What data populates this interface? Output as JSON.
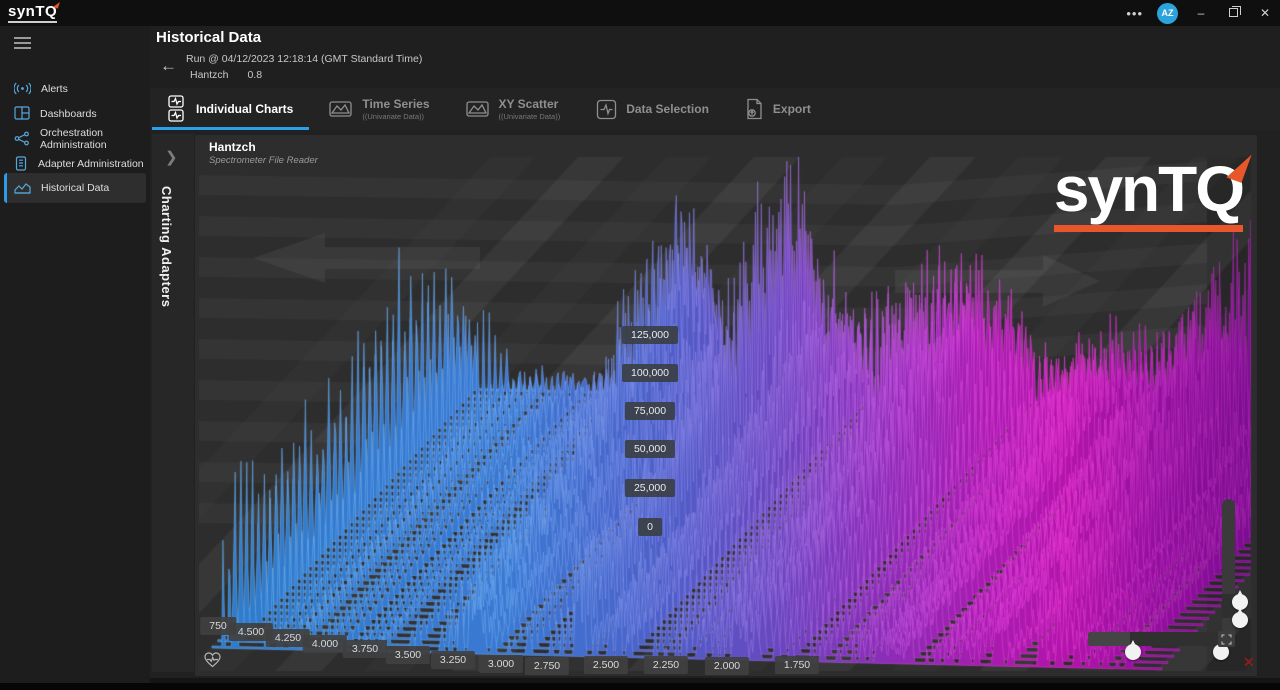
{
  "titlebar": {
    "logo": "synTQ",
    "ellipsis": "•••",
    "avatar": "AZ",
    "minimize": "–",
    "close": "✕"
  },
  "sidebar": {
    "items": [
      {
        "label": "Alerts",
        "icon": "alerts-icon",
        "active": false
      },
      {
        "label": "Dashboards",
        "icon": "dashboards-icon",
        "active": false
      },
      {
        "label": "Orchestration Administration",
        "icon": "orchestration-icon",
        "active": false
      },
      {
        "label": "Adapter Administration",
        "icon": "adapter-icon",
        "active": false
      },
      {
        "label": "Historical Data",
        "icon": "historical-data-icon",
        "active": true
      }
    ]
  },
  "header": {
    "title": "Historical Data",
    "run_line": "Run @ 04/12/2023 12:18:14 (GMT Standard Time)",
    "run_name": "Hantzch",
    "run_version": "0.8"
  },
  "tabs": [
    {
      "label": "Individual Charts",
      "sub": "",
      "active": true
    },
    {
      "label": "Time Series",
      "sub": "((Univariate Data))",
      "active": false
    },
    {
      "label": "XY Scatter",
      "sub": "((Univariate Data))",
      "active": false
    },
    {
      "label": "Data Selection",
      "sub": "",
      "active": false
    },
    {
      "label": "Export",
      "sub": "",
      "active": false
    }
  ],
  "panel": {
    "collapsed_label": "Charting Adapters",
    "watermark": "synTQ"
  },
  "chart_data": {
    "type": "surface3d-waterfall",
    "title": "Hantzch",
    "subtitle": "Spectrometer File Reader",
    "x_axis": {
      "labels": [
        "750",
        "4.500",
        "4.250",
        "4.000",
        "3.750",
        "3.500",
        "3.250",
        "3.000",
        "2.750",
        "2.500",
        "2.250",
        "2.000",
        "1.750"
      ]
    },
    "y_axis": {
      "labels": [
        "125,000",
        "100,000",
        "75,000",
        "50,000",
        "25,000",
        "0"
      ],
      "min": 0,
      "max": 125000
    },
    "rows": 42,
    "seed": 7,
    "peak_count": 120,
    "envelope": [
      [
        0,
        0.32
      ],
      [
        0.02,
        0.62
      ],
      [
        0.05,
        0.34
      ],
      [
        0.1,
        0.22
      ],
      [
        0.15,
        0.24
      ],
      [
        0.2,
        0.3
      ],
      [
        0.24,
        0.45
      ],
      [
        0.27,
        0.95
      ],
      [
        0.3,
        0.55
      ],
      [
        0.33,
        0.42
      ],
      [
        0.36,
        0.7
      ],
      [
        0.385,
        1.0
      ],
      [
        0.41,
        0.6
      ],
      [
        0.45,
        0.78
      ],
      [
        0.5,
        0.68
      ],
      [
        0.55,
        0.75
      ],
      [
        0.6,
        0.62
      ],
      [
        0.65,
        0.55
      ],
      [
        0.7,
        0.5
      ],
      [
        0.75,
        0.46
      ],
      [
        0.8,
        0.52
      ],
      [
        0.85,
        0.68
      ],
      [
        0.875,
        0.92
      ],
      [
        0.9,
        0.55
      ],
      [
        0.94,
        0.38
      ],
      [
        1,
        0.3
      ]
    ],
    "front_boost": [
      [
        0,
        2.4
      ],
      [
        0.04,
        2.2
      ],
      [
        0.08,
        0.8
      ],
      [
        0.15,
        0.1
      ],
      [
        0.3,
        0
      ],
      [
        1,
        0
      ]
    ],
    "row_profile": [
      [
        0,
        0.5
      ],
      [
        0.12,
        0.95
      ],
      [
        0.3,
        0.85
      ],
      [
        0.5,
        0.55
      ],
      [
        0.7,
        0.42
      ],
      [
        0.85,
        0.38
      ],
      [
        1,
        0.35
      ]
    ],
    "extra_peaks": [
      [
        0.272,
        0.004,
        1
      ],
      [
        0.276,
        0.003,
        0.9
      ],
      [
        0.281,
        0.0035,
        1
      ],
      [
        0.383,
        0.003,
        1
      ],
      [
        0.387,
        0.004,
        0.95
      ],
      [
        0.391,
        0.003,
        1
      ],
      [
        0.871,
        0.003,
        0.9
      ],
      [
        0.876,
        0.0035,
        1
      ]
    ],
    "palette": [
      [
        0,
        "#2E7CCB"
      ],
      [
        0.3,
        "#3B79D3"
      ],
      [
        0.45,
        "#4E5FC8"
      ],
      [
        0.55,
        "#6848C0"
      ],
      [
        0.65,
        "#8A2FB8"
      ],
      [
        0.75,
        "#A71DB0"
      ],
      [
        0.83,
        "#B315AB"
      ],
      [
        0.92,
        "#92109E"
      ],
      [
        1,
        "#7D0D92"
      ]
    ],
    "palette_light": [
      [
        0,
        "#66B0EE"
      ],
      [
        0.3,
        "#6FA8F0"
      ],
      [
        0.45,
        "#8487E6"
      ],
      [
        0.55,
        "#9B72E0"
      ],
      [
        0.65,
        "#C159E0"
      ],
      [
        0.75,
        "#E03FDA"
      ],
      [
        0.83,
        "#EA39D4"
      ],
      [
        0.92,
        "#C12FC0"
      ],
      [
        1,
        "#A928AE"
      ]
    ]
  },
  "colors": {
    "accent_blue": "#2B9FE8",
    "accent_orange": "#E8572B",
    "sidebar_icon_blue": "#56A8DC"
  }
}
